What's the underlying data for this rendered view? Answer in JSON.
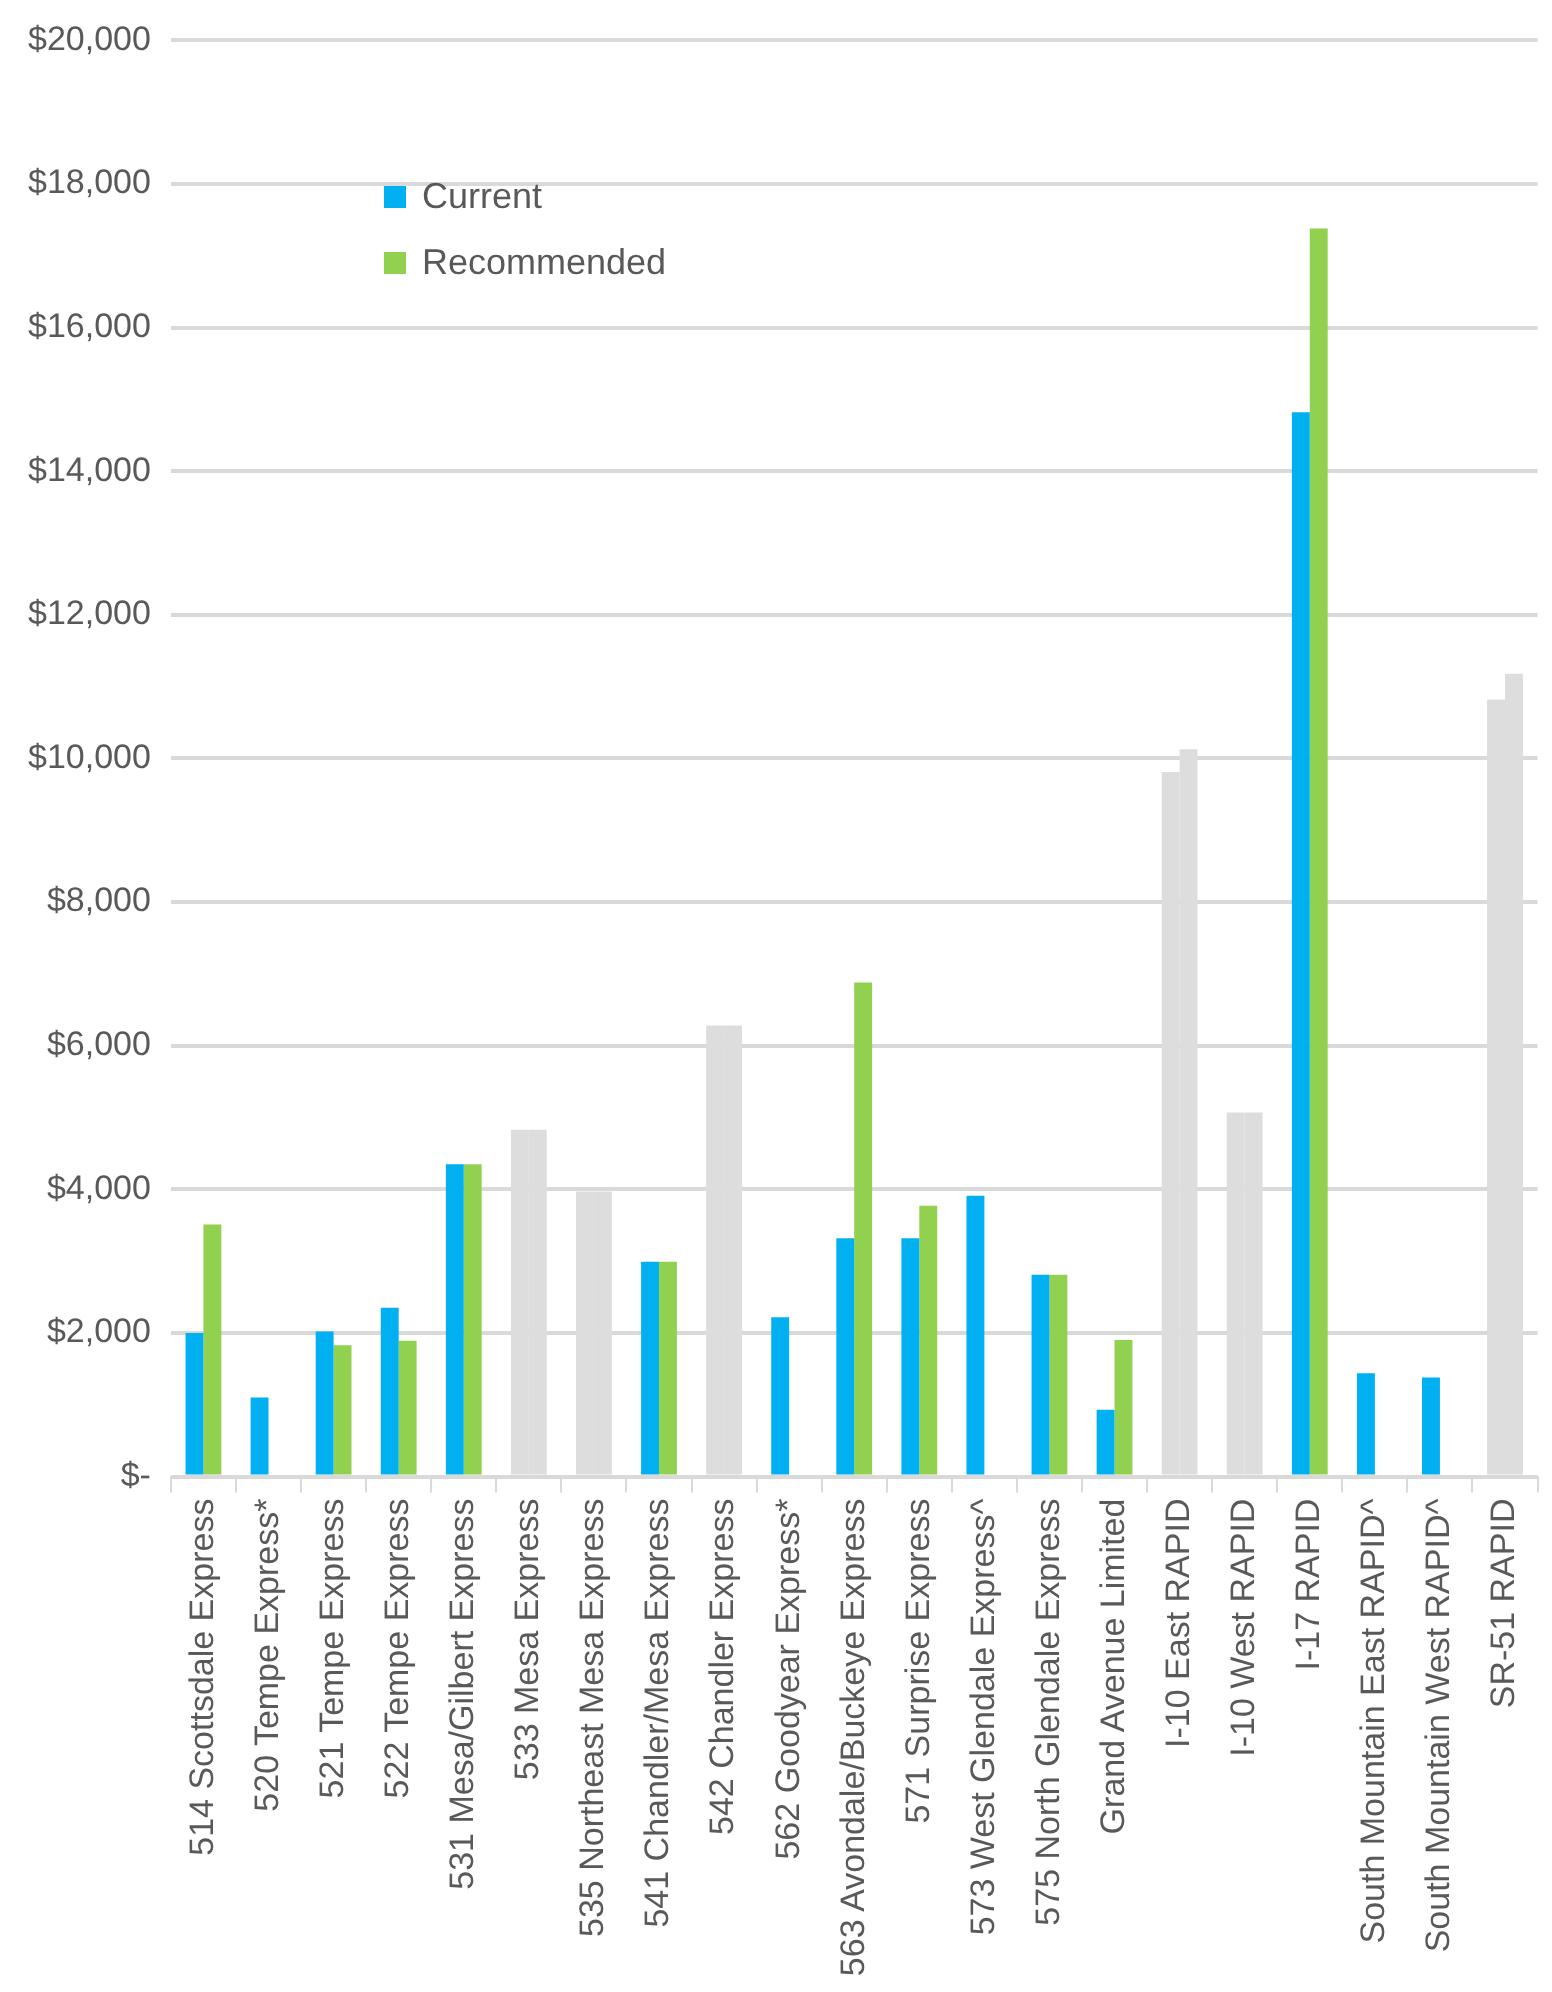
{
  "chart_data": {
    "type": "bar",
    "categories": [
      "514 Scottsdale Express",
      "520 Tempe Express*",
      "521 Tempe Express",
      "522 Tempe Express",
      "531 Mesa/Gilbert Express",
      "533 Mesa Express",
      "535 Northeast Mesa Express",
      "541 Chandler/Mesa Express",
      "542 Chandler Express",
      "562 Goodyear Express*",
      "563 Avondale/Buckeye Express",
      "571 Surprise Express",
      "573 West Glendale Express^",
      "575 North Glendale Express",
      "Grand Avenue Limited",
      "I-10 East RAPID",
      "I-10 West RAPID",
      "I-17 RAPID",
      "South Mountain East RAPID^",
      "South Mountain West RAPID^",
      "SR-51 RAPID"
    ],
    "series": [
      {
        "name": "Current",
        "color": "#00b0f0",
        "colors": [
          "#00b0f0",
          "#00b0f0",
          "#00b0f0",
          "#00b0f0",
          "#00b0f0",
          "#dddddd",
          "#dddddd",
          "#00b0f0",
          "#dddddd",
          "#00b0f0",
          "#00b0f0",
          "#00b0f0",
          "#00b0f0",
          "#00b0f0",
          "#00b0f0",
          "#dddddd",
          "#dddddd",
          "#00b0f0",
          "#00b0f0",
          "#00b0f0",
          "#dddddd"
        ],
        "values": [
          2000,
          1100,
          2020,
          2350,
          4350,
          4830,
          3970,
          2990,
          6280,
          2220,
          3320,
          3320,
          3910,
          2810,
          930,
          9810,
          5070,
          14820,
          1440,
          1380,
          10820
        ]
      },
      {
        "name": "Recommended",
        "color": "#92d050",
        "colors": [
          "#92d050",
          "#92d050",
          "#92d050",
          "#92d050",
          "#92d050",
          "#dddddd",
          "#dddddd",
          "#92d050",
          "#dddddd",
          "#92d050",
          "#92d050",
          "#92d050",
          "#92d050",
          "#92d050",
          "#92d050",
          "#dddddd",
          "#dddddd",
          "#92d050",
          "#92d050",
          "#92d050",
          "#dddddd"
        ],
        "values": [
          3510,
          null,
          1830,
          1890,
          4350,
          4830,
          3970,
          2990,
          6280,
          null,
          6880,
          3770,
          null,
          2810,
          1900,
          10130,
          5070,
          17380,
          null,
          null,
          11180
        ]
      }
    ],
    "ylim": [
      0,
      20000
    ],
    "yticks": [
      {
        "value": 0,
        "label": "$-"
      },
      {
        "value": 2000,
        "label": "$2,000"
      },
      {
        "value": 4000,
        "label": "$4,000"
      },
      {
        "value": 6000,
        "label": "$6,000"
      },
      {
        "value": 8000,
        "label": "$8,000"
      },
      {
        "value": 10000,
        "label": "$10,000"
      },
      {
        "value": 12000,
        "label": "$12,000"
      },
      {
        "value": 14000,
        "label": "$14,000"
      },
      {
        "value": 16000,
        "label": "$16,000"
      },
      {
        "value": 18000,
        "label": "$18,000"
      },
      {
        "value": 20000,
        "label": "$20,000"
      }
    ],
    "grid": "y",
    "legend": "top left"
  }
}
